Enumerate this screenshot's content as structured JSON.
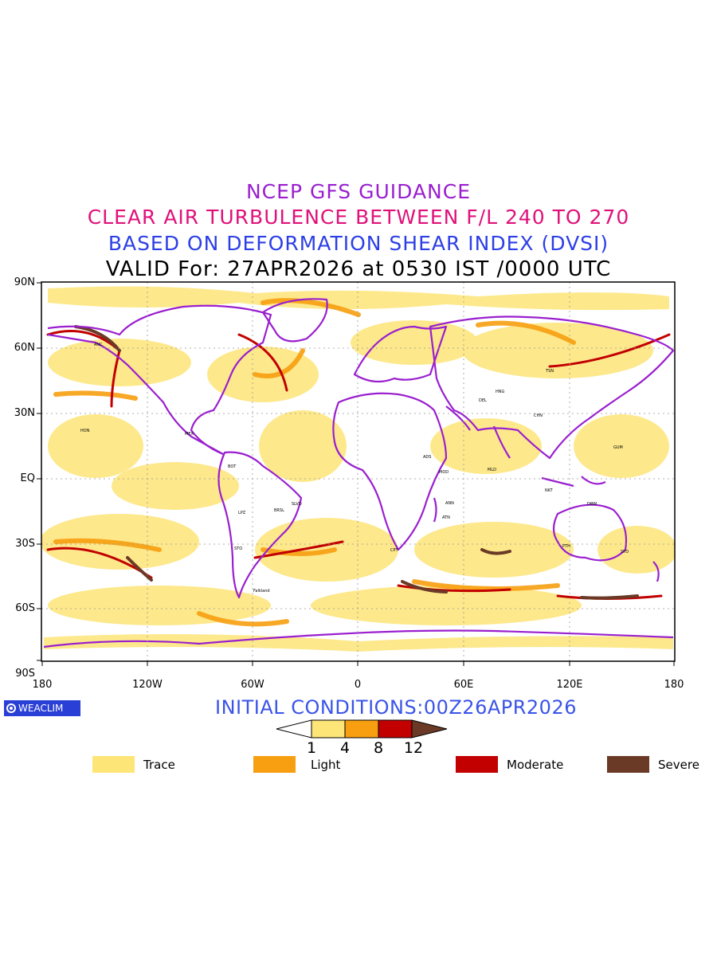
{
  "titles": {
    "line1": "NCEP GFS GUIDANCE",
    "line2": "CLEAR AIR TURBULENCE BETWEEN F/L 240 TO 270",
    "line3": "BASED ON DEFORMATION SHEAR INDEX (DVSI)",
    "line4": "VALID For: 27APR2026 at 0530 IST /0000 UTC"
  },
  "map": {
    "lat_labels": [
      "90N",
      "60N",
      "30N",
      "EQ",
      "30S",
      "60S",
      "90S"
    ],
    "lon_labels": [
      "180",
      "120W",
      "60W",
      "0",
      "60E",
      "120E",
      "180"
    ],
    "coastline_color": "#9a1fcf",
    "stations": [
      "ANC",
      "HON",
      "MEX",
      "BOT",
      "LPZ",
      "BRSL",
      "SLVD",
      "STO",
      "Falkland",
      "CPT",
      "ANN",
      "ATN",
      "MOD",
      "ADS",
      "MLD",
      "DEL",
      "CHN",
      "HNG",
      "TSN",
      "PTH",
      "SYD",
      "GUM",
      "NKT",
      "DRW"
    ]
  },
  "branding": {
    "logo_text": "WEACLIM"
  },
  "initial_conditions": "INITIAL CONDITIONS:00Z26APR2026",
  "scale": {
    "ticks": [
      "1",
      "4",
      "8",
      "12"
    ]
  },
  "legend": [
    {
      "label": "Trace",
      "color": "#fde577"
    },
    {
      "label": "Light",
      "color": "#f79f10"
    },
    {
      "label": "Moderate",
      "color": "#c20000"
    },
    {
      "label": "Severe",
      "color": "#6b3a26"
    }
  ],
  "colors": {
    "trace": "#fde577",
    "light": "#f79f10",
    "moderate": "#c20000",
    "severe": "#6b3a26"
  }
}
